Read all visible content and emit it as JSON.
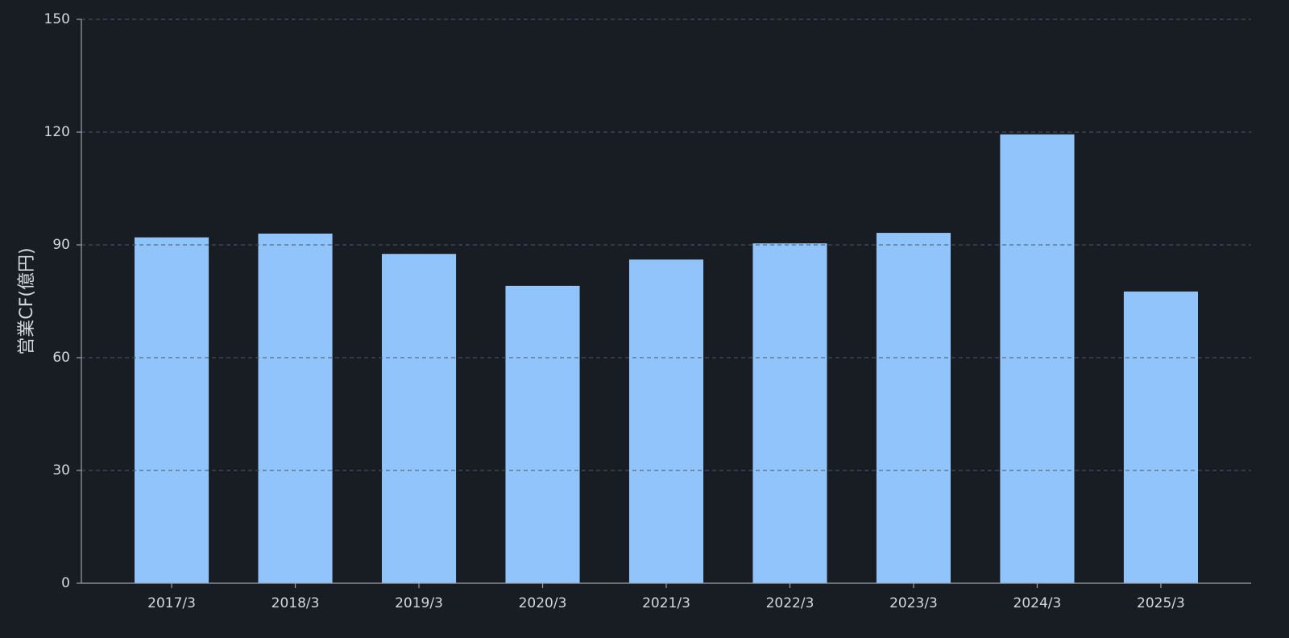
{
  "chart_data": {
    "type": "bar",
    "y_label": "営業CF(億円)",
    "categories": [
      "2017/3",
      "2018/3",
      "2019/3",
      "2020/3",
      "2021/3",
      "2022/3",
      "2023/3",
      "2024/3",
      "2025/3"
    ],
    "values": [
      92,
      93,
      87.6,
      79.1,
      86.1,
      90.4,
      93.2,
      119.4,
      77.6
    ],
    "color": "#90c4fa",
    "ylim": [
      0,
      150
    ],
    "yticks": [
      0,
      30,
      60,
      90,
      120,
      150
    ],
    "grid": true
  }
}
